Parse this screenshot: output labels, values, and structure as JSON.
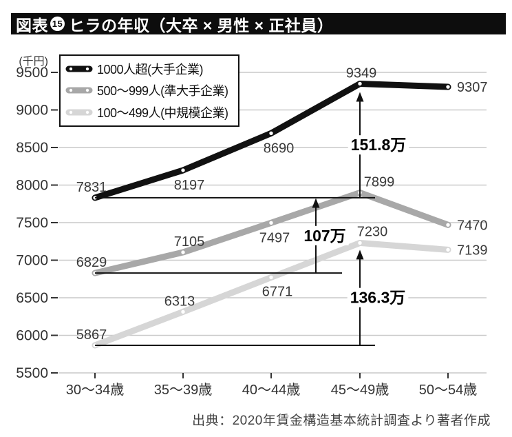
{
  "title": {
    "prefix": "図表",
    "number": "15",
    "text": "ヒラの年収（大卒 × 男性 × 正社員）"
  },
  "source": "出典：2020年賃金構造基本統計調査より著者作成",
  "chart_data": {
    "type": "line",
    "title": "図表15 ヒラの年収（大卒 × 男性 × 正社員）",
    "xlabel": "",
    "ylabel": "(千円)",
    "unit_label": "(千円)",
    "categories": [
      "30〜34歳",
      "35〜39歳",
      "40〜44歳",
      "45〜49歳",
      "50〜54歳"
    ],
    "series": [
      {
        "name": "1000人超(大手企業)",
        "color": "#111111",
        "values": [
          7831,
          8197,
          8690,
          9349,
          9307
        ]
      },
      {
        "name": "500〜999人(準大手企業)",
        "color": "#a8a8a8",
        "values": [
          6829,
          7105,
          7497,
          7899,
          7470
        ]
      },
      {
        "name": "100〜499人(中規模企業)",
        "color": "#d6d6d6",
        "values": [
          5867,
          6313,
          6771,
          7230,
          7139
        ]
      }
    ],
    "ylim": [
      5500,
      9500
    ],
    "ytick_step": 500,
    "grid": true,
    "legend_position": "top-left",
    "annotations": [
      {
        "label": "151.8万",
        "series": 0,
        "from_index": 0,
        "to_index": 3,
        "meaning": "9349-7831=1518千円"
      },
      {
        "label": "107万",
        "series": 1,
        "from_index": 0,
        "to_index": 3,
        "meaning": "7899-6829=1070千円"
      },
      {
        "label": "136.3万",
        "series": 2,
        "from_index": 0,
        "to_index": 3,
        "meaning": "7230-5867=1363千円"
      }
    ]
  }
}
